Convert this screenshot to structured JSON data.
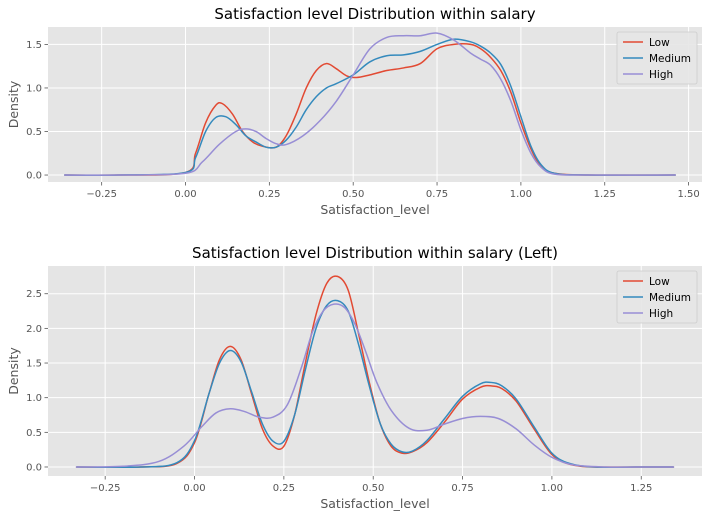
{
  "chart_data": [
    {
      "type": "line",
      "title": "Satisfaction level Distribution within salary",
      "xlabel": "Satisfaction_level",
      "ylabel": "Density",
      "xlim": [
        -0.41,
        1.54
      ],
      "ylim": [
        -0.08,
        1.7
      ],
      "xticks": [
        -0.25,
        0.0,
        0.25,
        0.5,
        0.75,
        1.0,
        1.25,
        1.5
      ],
      "xtick_labels": [
        "−0.25",
        "0.00",
        "0.25",
        "0.50",
        "0.75",
        "1.00",
        "1.25",
        "1.50"
      ],
      "yticks": [
        0.0,
        0.5,
        1.0,
        1.5
      ],
      "ytick_labels": [
        "0.0",
        "0.5",
        "1.0",
        "1.5"
      ],
      "grid": true,
      "legend_position": "top-right",
      "series": [
        {
          "name": "Low",
          "color": "#E24A33",
          "x": [
            -0.36,
            -0.2,
            0.0,
            0.03,
            0.06,
            0.09,
            0.11,
            0.14,
            0.17,
            0.2,
            0.23,
            0.27,
            0.3,
            0.33,
            0.36,
            0.39,
            0.42,
            0.45,
            0.48,
            0.51,
            0.55,
            0.6,
            0.65,
            0.7,
            0.75,
            0.8,
            0.85,
            0.88,
            0.91,
            0.94,
            0.97,
            1.0,
            1.03,
            1.06,
            1.1,
            1.2,
            1.46
          ],
          "y": [
            0.0,
            0.0,
            0.03,
            0.25,
            0.6,
            0.8,
            0.82,
            0.7,
            0.5,
            0.38,
            0.33,
            0.32,
            0.45,
            0.7,
            1.0,
            1.2,
            1.28,
            1.22,
            1.14,
            1.12,
            1.15,
            1.2,
            1.23,
            1.28,
            1.45,
            1.5,
            1.5,
            1.45,
            1.35,
            1.2,
            0.95,
            0.6,
            0.3,
            0.1,
            0.02,
            0.0,
            0.0
          ]
        },
        {
          "name": "Medium",
          "color": "#348ABD",
          "x": [
            -0.36,
            -0.2,
            0.0,
            0.03,
            0.06,
            0.09,
            0.12,
            0.15,
            0.18,
            0.21,
            0.24,
            0.27,
            0.3,
            0.33,
            0.36,
            0.39,
            0.42,
            0.45,
            0.5,
            0.55,
            0.6,
            0.65,
            0.7,
            0.75,
            0.8,
            0.85,
            0.88,
            0.91,
            0.94,
            0.97,
            1.0,
            1.03,
            1.06,
            1.1,
            1.2,
            1.46
          ],
          "y": [
            0.0,
            0.0,
            0.03,
            0.2,
            0.5,
            0.66,
            0.67,
            0.58,
            0.45,
            0.38,
            0.32,
            0.32,
            0.4,
            0.55,
            0.75,
            0.9,
            1.0,
            1.05,
            1.15,
            1.3,
            1.37,
            1.38,
            1.42,
            1.5,
            1.56,
            1.53,
            1.48,
            1.4,
            1.27,
            1.02,
            0.67,
            0.33,
            0.12,
            0.02,
            0.0,
            0.0
          ]
        },
        {
          "name": "High",
          "color": "#988ED5",
          "x": [
            -0.36,
            -0.2,
            0.0,
            0.05,
            0.1,
            0.15,
            0.18,
            0.21,
            0.24,
            0.27,
            0.3,
            0.35,
            0.4,
            0.45,
            0.5,
            0.55,
            0.6,
            0.65,
            0.7,
            0.75,
            0.8,
            0.85,
            0.88,
            0.91,
            0.94,
            0.97,
            1.0,
            1.03,
            1.06,
            1.1,
            1.2,
            1.46
          ],
          "y": [
            0.0,
            0.0,
            0.02,
            0.15,
            0.35,
            0.5,
            0.53,
            0.5,
            0.42,
            0.36,
            0.35,
            0.45,
            0.62,
            0.85,
            1.15,
            1.45,
            1.58,
            1.6,
            1.6,
            1.63,
            1.55,
            1.4,
            1.33,
            1.26,
            1.1,
            0.85,
            0.52,
            0.25,
            0.09,
            0.01,
            0.0,
            0.0
          ]
        }
      ]
    },
    {
      "type": "line",
      "title": "Satisfaction level Distribution within salary (Left)",
      "xlabel": "Satisfaction_level",
      "ylabel": "Density",
      "xlim": [
        -0.41,
        1.42
      ],
      "ylim": [
        -0.13,
        2.9
      ],
      "xticks": [
        -0.25,
        0.0,
        0.25,
        0.5,
        0.75,
        1.0,
        1.25
      ],
      "xtick_labels": [
        "−0.25",
        "0.00",
        "0.25",
        "0.50",
        "0.75",
        "1.00",
        "1.25"
      ],
      "yticks": [
        0.0,
        0.5,
        1.0,
        1.5,
        2.0,
        2.5
      ],
      "ytick_labels": [
        "0.0",
        "0.5",
        "1.0",
        "1.5",
        "2.0",
        "2.5"
      ],
      "grid": true,
      "legend_position": "top-right",
      "series": [
        {
          "name": "Low",
          "color": "#E24A33",
          "x": [
            -0.33,
            -0.15,
            -0.05,
            0.0,
            0.04,
            0.07,
            0.1,
            0.13,
            0.16,
            0.19,
            0.22,
            0.25,
            0.28,
            0.31,
            0.34,
            0.37,
            0.4,
            0.43,
            0.46,
            0.49,
            0.52,
            0.55,
            0.58,
            0.61,
            0.65,
            0.7,
            0.75,
            0.8,
            0.83,
            0.86,
            0.9,
            0.95,
            1.0,
            1.05,
            1.12,
            1.25,
            1.34
          ],
          "y": [
            0.0,
            0.0,
            0.05,
            0.35,
            1.05,
            1.55,
            1.74,
            1.55,
            1.05,
            0.55,
            0.3,
            0.3,
            0.75,
            1.5,
            2.2,
            2.65,
            2.75,
            2.55,
            1.9,
            1.2,
            0.62,
            0.3,
            0.2,
            0.22,
            0.35,
            0.65,
            0.98,
            1.15,
            1.17,
            1.13,
            0.95,
            0.55,
            0.18,
            0.04,
            0.0,
            0.0,
            0.0
          ]
        },
        {
          "name": "Medium",
          "color": "#348ABD",
          "x": [
            -0.33,
            -0.15,
            -0.05,
            0.0,
            0.04,
            0.07,
            0.1,
            0.13,
            0.16,
            0.19,
            0.22,
            0.25,
            0.28,
            0.31,
            0.34,
            0.37,
            0.4,
            0.43,
            0.46,
            0.49,
            0.52,
            0.55,
            0.58,
            0.61,
            0.65,
            0.7,
            0.75,
            0.8,
            0.83,
            0.86,
            0.9,
            0.95,
            1.0,
            1.05,
            1.12,
            1.25,
            1.34
          ],
          "y": [
            0.0,
            0.0,
            0.06,
            0.38,
            1.05,
            1.5,
            1.68,
            1.52,
            1.08,
            0.62,
            0.37,
            0.37,
            0.75,
            1.4,
            2.0,
            2.33,
            2.4,
            2.25,
            1.75,
            1.15,
            0.62,
            0.33,
            0.22,
            0.23,
            0.38,
            0.7,
            1.02,
            1.2,
            1.22,
            1.17,
            0.98,
            0.58,
            0.2,
            0.05,
            0.0,
            0.0,
            0.0
          ]
        },
        {
          "name": "High",
          "color": "#988ED5",
          "x": [
            -0.33,
            -0.2,
            -0.1,
            -0.03,
            0.02,
            0.06,
            0.1,
            0.14,
            0.18,
            0.22,
            0.26,
            0.3,
            0.33,
            0.36,
            0.39,
            0.42,
            0.45,
            0.48,
            0.51,
            0.55,
            0.6,
            0.65,
            0.7,
            0.75,
            0.8,
            0.85,
            0.9,
            0.95,
            1.0,
            1.06,
            1.15,
            1.25,
            1.34
          ],
          "y": [
            0.0,
            0.01,
            0.08,
            0.3,
            0.58,
            0.78,
            0.84,
            0.8,
            0.72,
            0.72,
            0.9,
            1.45,
            1.95,
            2.25,
            2.35,
            2.3,
            2.05,
            1.65,
            1.22,
            0.82,
            0.56,
            0.53,
            0.62,
            0.7,
            0.73,
            0.7,
            0.55,
            0.32,
            0.14,
            0.03,
            0.0,
            0.0,
            0.0
          ]
        }
      ]
    }
  ]
}
